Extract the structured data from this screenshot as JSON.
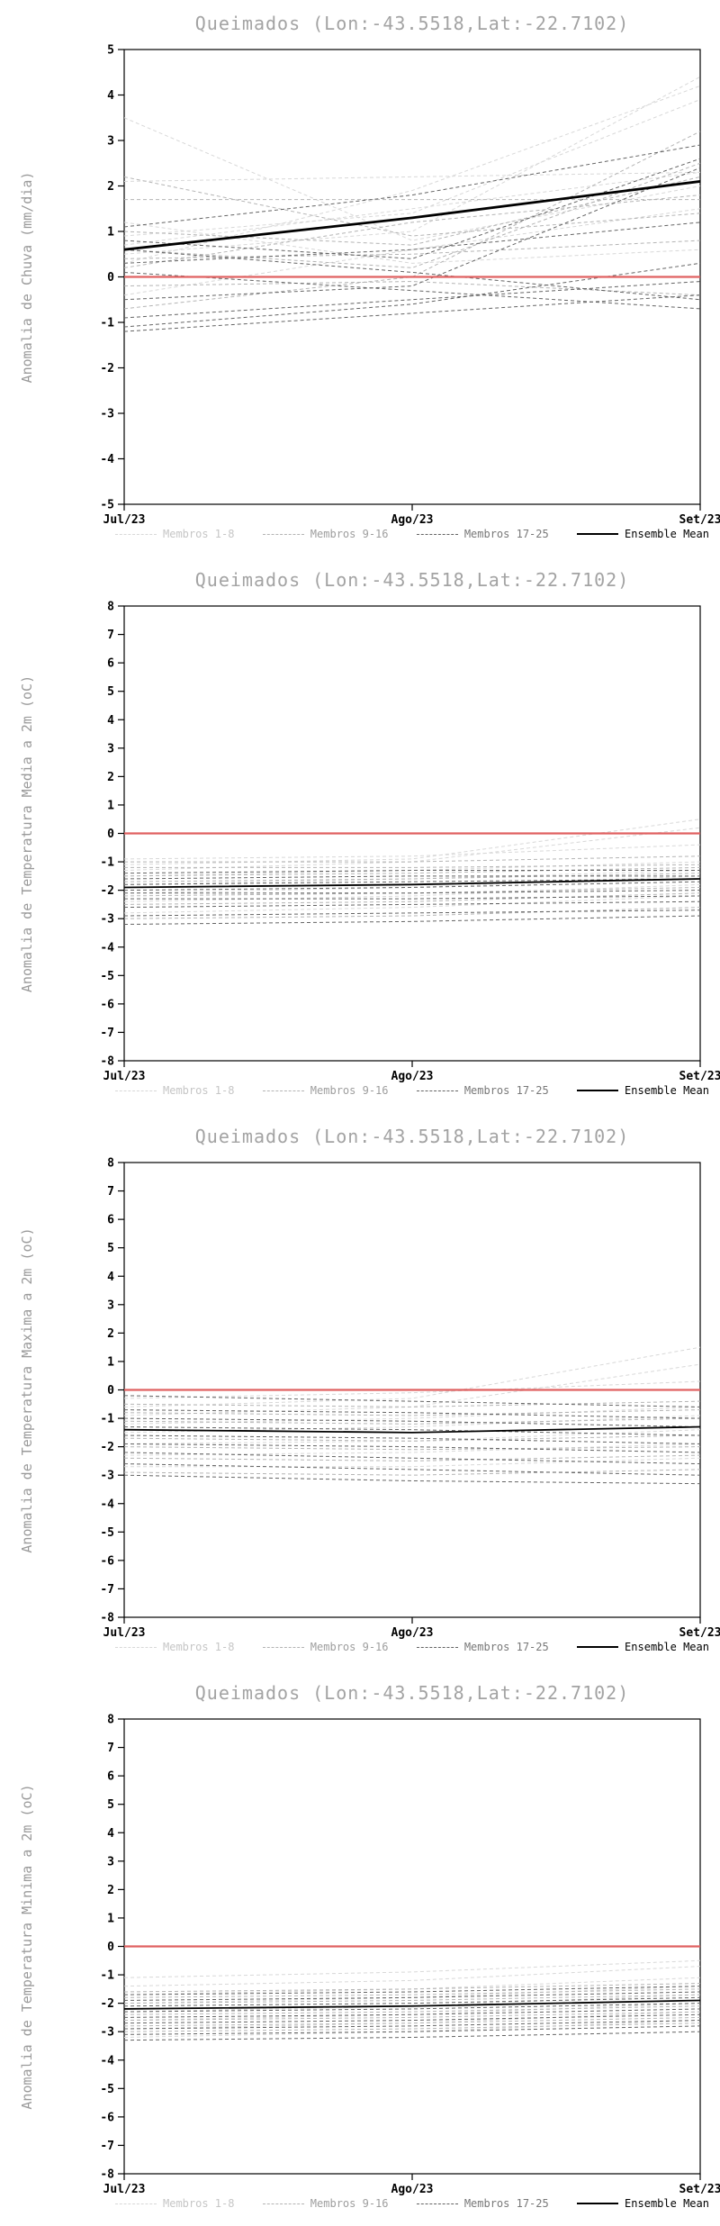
{
  "legend": {
    "items": [
      {
        "label": "Membros 1-8",
        "color": "#d8d8d8",
        "label_color": "#c6c6c6",
        "dash": true
      },
      {
        "label": "Membros 9-16",
        "color": "#b4b4b4",
        "label_color": "#9e9e9e",
        "dash": true
      },
      {
        "label": "Membros 17-25",
        "color": "#646464",
        "label_color": "#787878",
        "dash": true
      },
      {
        "label": "Ensemble Mean",
        "color": "#000000",
        "label_color": "#000000",
        "dash": false
      }
    ]
  },
  "style": {
    "member_colors": [
      "#d8d8d8",
      "#b4b4b4",
      "#646464"
    ],
    "member_dash": "4 3",
    "member_width": 1,
    "zero_color": "#e06161",
    "zero_width": 2.2,
    "mean_color": "#000000"
  },
  "chart_data": [
    {
      "type": "line",
      "title": "Queimados (Lon:-43.5518,Lat:-22.7102)",
      "ylabel": "Anomalia de Chuva (mm/dia)",
      "ylim": [
        -5,
        5
      ],
      "ystep": 1,
      "x_categories": [
        "Jul/23",
        "Ago/23",
        "Set/23"
      ],
      "legend_position": "bottom",
      "grid": false,
      "climatology": [
        0,
        0,
        0
      ],
      "ensemble_mean": [
        0.6,
        1.3,
        2.1
      ],
      "mean_width": 2.8,
      "members_1_8": [
        [
          0.7,
          1.5,
          2.3
        ],
        [
          3.5,
          0.8,
          2.0
        ],
        [
          2.1,
          2.2,
          2.3
        ],
        [
          0.5,
          1.0,
          4.4
        ],
        [
          1.2,
          0.3,
          0.6
        ],
        [
          0.3,
          1.9,
          4.2
        ],
        [
          -0.4,
          0.6,
          1.5
        ],
        [
          0.9,
          1.4,
          3.9
        ]
      ],
      "members_9_16": [
        [
          1.7,
          1.7,
          1.7
        ],
        [
          0.6,
          0.2,
          2.5
        ],
        [
          -0.2,
          -0.1,
          -0.4
        ],
        [
          1.0,
          0.7,
          2.2
        ],
        [
          0.2,
          1.2,
          1.8
        ],
        [
          -0.7,
          0.0,
          3.2
        ],
        [
          2.2,
          0.9,
          1.4
        ],
        [
          0.4,
          0.5,
          0.8
        ]
      ],
      "members_17_25": [
        [
          -1.1,
          -0.6,
          0.3
        ],
        [
          0.1,
          -0.3,
          -0.7
        ],
        [
          0.6,
          0.1,
          -0.5
        ],
        [
          -1.2,
          -0.8,
          -0.4
        ],
        [
          0.8,
          0.4,
          2.6
        ],
        [
          -0.5,
          -0.2,
          2.4
        ],
        [
          1.1,
          1.8,
          2.9
        ],
        [
          0.3,
          0.6,
          1.2
        ],
        [
          -0.9,
          -0.5,
          -0.1
        ]
      ]
    },
    {
      "type": "line",
      "title": "Queimados (Lon:-43.5518,Lat:-22.7102)",
      "ylabel": "Anomalia de Temperatura Media a 2m (oC)",
      "ylim": [
        -8,
        8
      ],
      "ystep": 1,
      "x_categories": [
        "Jul/23",
        "Ago/23",
        "Set/23"
      ],
      "legend_position": "bottom",
      "grid": false,
      "climatology": [
        0,
        0,
        0
      ],
      "ensemble_mean": [
        -1.9,
        -1.8,
        -1.6
      ],
      "mean_width": 1.8,
      "members_1_8": [
        [
          -0.9,
          -0.8,
          -0.4
        ],
        [
          -1.1,
          -0.9,
          0.5
        ],
        [
          -1.3,
          -1.0,
          0.2
        ],
        [
          -1.5,
          -1.3,
          -1.0
        ],
        [
          -1.8,
          -1.6,
          -1.3
        ],
        [
          -2.1,
          -1.9,
          -1.5
        ],
        [
          -2.4,
          -2.2,
          -1.8
        ],
        [
          -2.8,
          -2.6,
          -2.2
        ]
      ],
      "members_9_16": [
        [
          -1.0,
          -1.0,
          -0.8
        ],
        [
          -1.2,
          -1.2,
          -1.1
        ],
        [
          -1.5,
          -1.4,
          -1.2
        ],
        [
          -1.7,
          -1.6,
          -1.4
        ],
        [
          -1.9,
          -1.8,
          -1.6
        ],
        [
          -2.2,
          -2.1,
          -1.9
        ],
        [
          -2.5,
          -2.4,
          -2.1
        ],
        [
          -3.0,
          -2.9,
          -2.6
        ]
      ],
      "members_17_25": [
        [
          -1.4,
          -1.3,
          -1.3
        ],
        [
          -1.6,
          -1.5,
          -1.5
        ],
        [
          -1.8,
          -1.7,
          -1.6
        ],
        [
          -2.0,
          -1.9,
          -1.7
        ],
        [
          -2.1,
          -2.1,
          -2.0
        ],
        [
          -2.3,
          -2.3,
          -2.2
        ],
        [
          -2.6,
          -2.5,
          -2.4
        ],
        [
          -2.9,
          -2.8,
          -2.7
        ],
        [
          -3.2,
          -3.1,
          -2.9
        ]
      ]
    },
    {
      "type": "line",
      "title": "Queimados (Lon:-43.5518,Lat:-22.7102)",
      "ylabel": "Anomalia de Temperatura Maxima a 2m (oC)",
      "ylim": [
        -8,
        8
      ],
      "ystep": 1,
      "x_categories": [
        "Jul/23",
        "Ago/23",
        "Set/23"
      ],
      "legend_position": "bottom",
      "grid": false,
      "climatology": [
        0,
        0,
        0
      ],
      "ensemble_mean": [
        -1.4,
        -1.5,
        -1.3
      ],
      "mean_width": 1.8,
      "members_1_8": [
        [
          -0.3,
          -0.1,
          0.3
        ],
        [
          -0.6,
          -0.3,
          1.5
        ],
        [
          -0.9,
          -0.6,
          0.9
        ],
        [
          -1.2,
          -1.0,
          -0.6
        ],
        [
          -1.5,
          -1.3,
          -0.9
        ],
        [
          -1.9,
          -1.8,
          -1.4
        ],
        [
          -2.3,
          -2.2,
          -1.9
        ],
        [
          -2.7,
          -2.7,
          -2.4
        ]
      ],
      "members_9_16": [
        [
          -0.5,
          -0.6,
          -0.4
        ],
        [
          -0.8,
          -0.9,
          -0.7
        ],
        [
          -1.1,
          -1.2,
          -1.0
        ],
        [
          -1.4,
          -1.5,
          -1.3
        ],
        [
          -1.7,
          -1.8,
          -1.6
        ],
        [
          -2.0,
          -2.1,
          -2.0
        ],
        [
          -2.4,
          -2.5,
          -2.3
        ],
        [
          -2.9,
          -3.0,
          -2.8
        ]
      ],
      "members_17_25": [
        [
          -0.2,
          -0.4,
          -0.6
        ],
        [
          -0.7,
          -0.8,
          -1.0
        ],
        [
          -1.0,
          -1.1,
          -1.3
        ],
        [
          -1.3,
          -1.4,
          -1.6
        ],
        [
          -1.6,
          -1.7,
          -1.9
        ],
        [
          -1.9,
          -2.0,
          -2.2
        ],
        [
          -2.2,
          -2.4,
          -2.6
        ],
        [
          -2.6,
          -2.8,
          -3.0
        ],
        [
          -3.0,
          -3.2,
          -3.3
        ]
      ]
    },
    {
      "type": "line",
      "title": "Queimados (Lon:-43.5518,Lat:-22.7102)",
      "ylabel": "Anomalia de Temperatura Minima a 2m (oC)",
      "ylim": [
        -8,
        8
      ],
      "ystep": 1,
      "x_categories": [
        "Jul/23",
        "Ago/23",
        "Set/23"
      ],
      "legend_position": "bottom",
      "grid": false,
      "climatology": [
        0,
        0,
        0
      ],
      "ensemble_mean": [
        -2.2,
        -2.1,
        -1.9
      ],
      "mean_width": 1.8,
      "members_1_8": [
        [
          -1.1,
          -0.9,
          -0.5
        ],
        [
          -1.4,
          -1.2,
          -0.7
        ],
        [
          -1.7,
          -1.5,
          -1.1
        ],
        [
          -2.0,
          -1.8,
          -1.4
        ],
        [
          -2.3,
          -2.1,
          -1.7
        ],
        [
          -2.6,
          -2.4,
          -2.0
        ],
        [
          -2.9,
          -2.7,
          -2.3
        ],
        [
          -3.2,
          -3.0,
          -2.6
        ]
      ],
      "members_9_16": [
        [
          -1.6,
          -1.5,
          -1.3
        ],
        [
          -1.8,
          -1.7,
          -1.5
        ],
        [
          -2.0,
          -1.9,
          -1.7
        ],
        [
          -2.2,
          -2.1,
          -1.9
        ],
        [
          -2.4,
          -2.3,
          -2.1
        ],
        [
          -2.6,
          -2.5,
          -2.3
        ],
        [
          -2.8,
          -2.7,
          -2.5
        ],
        [
          -3.0,
          -2.9,
          -2.7
        ]
      ],
      "members_17_25": [
        [
          -1.7,
          -1.6,
          -1.4
        ],
        [
          -1.9,
          -1.8,
          -1.6
        ],
        [
          -2.1,
          -2.0,
          -1.8
        ],
        [
          -2.3,
          -2.2,
          -2.0
        ],
        [
          -2.5,
          -2.4,
          -2.2
        ],
        [
          -2.7,
          -2.6,
          -2.4
        ],
        [
          -2.9,
          -2.8,
          -2.6
        ],
        [
          -3.1,
          -3.0,
          -2.8
        ],
        [
          -3.3,
          -3.2,
          -3.0
        ]
      ]
    }
  ]
}
